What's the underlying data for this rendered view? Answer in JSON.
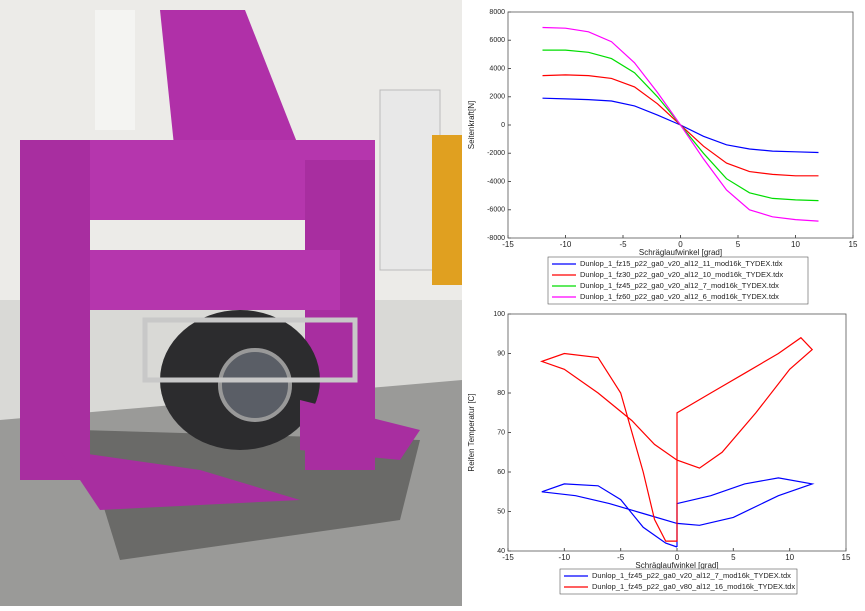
{
  "chart_data": [
    {
      "type": "line",
      "xlabel": "Schräglaufwinkel [grad]",
      "ylabel": "Seitenkraft[N]",
      "xlim": [
        -15,
        15
      ],
      "xticks": [
        -15,
        -10,
        -5,
        0,
        5,
        10,
        15
      ],
      "ylim": [
        -8000,
        8000
      ],
      "yticks": [
        -8000,
        -6000,
        -4000,
        -2000,
        0,
        2000,
        4000,
        6000,
        8000
      ],
      "series": [
        {
          "name": "Dunlop_1_fz15_p22_ga0_v20_al12_11_mod16k_TYDEX.tdx",
          "color": "#0000ff",
          "x": [
            -12,
            -10,
            -8,
            -6,
            -4,
            -2,
            0,
            2,
            4,
            6,
            8,
            10,
            12
          ],
          "values": [
            1900,
            1850,
            1800,
            1700,
            1350,
            700,
            0,
            -800,
            -1400,
            -1700,
            -1850,
            -1900,
            -1950
          ]
        },
        {
          "name": "Dunlop_1_fz30_p22_ga0_v20_al12_10_mod16k_TYDEX.tdx",
          "color": "#ff0000",
          "x": [
            -12,
            -10,
            -8,
            -6,
            -4,
            -2,
            0,
            2,
            4,
            6,
            8,
            10,
            12
          ],
          "values": [
            3500,
            3550,
            3500,
            3300,
            2700,
            1500,
            0,
            -1500,
            -2700,
            -3300,
            -3500,
            -3600,
            -3600
          ]
        },
        {
          "name": "Dunlop_1_fz45_p22_ga0_v20_al12_7_mod16k_TYDEX.tdx",
          "color": "#00dd00",
          "x": [
            -12,
            -10,
            -8,
            -6,
            -4,
            -2,
            0,
            2,
            4,
            6,
            8,
            10,
            12
          ],
          "values": [
            5300,
            5300,
            5150,
            4700,
            3700,
            2000,
            0,
            -2000,
            -3800,
            -4800,
            -5200,
            -5300,
            -5350
          ]
        },
        {
          "name": "Dunlop_1_fz60_p22_ga0_v20_al12_6_mod16k_TYDEX.tdx",
          "color": "#ff00ff",
          "x": [
            -12,
            -10,
            -8,
            -6,
            -4,
            -2,
            0,
            2,
            4,
            6,
            8,
            10,
            12
          ],
          "values": [
            6900,
            6850,
            6600,
            5900,
            4400,
            2300,
            0,
            -2400,
            -4600,
            -6000,
            -6500,
            -6700,
            -6800
          ]
        }
      ]
    },
    {
      "type": "line",
      "xlabel": "Schräglaufwinkel [grad]",
      "ylabel": "Reifen Temperatur [C]",
      "xlim": [
        -15,
        15
      ],
      "xticks": [
        -15,
        -10,
        -5,
        0,
        5,
        10,
        15
      ],
      "ylim": [
        40,
        100
      ],
      "yticks": [
        40,
        50,
        60,
        70,
        80,
        90,
        100
      ],
      "series": [
        {
          "name": "Dunlop_1_fz45_p22_ga0_v20_al12_7_mod16k_TYDEX.tdx",
          "color": "#0000ff",
          "x": [
            0,
            0,
            3,
            6,
            9,
            12,
            9,
            5,
            2,
            0,
            -3,
            -6,
            -9,
            -12,
            -10,
            -7,
            -5,
            -3,
            -1,
            0
          ],
          "values": [
            41,
            52,
            54,
            57,
            58.5,
            57,
            54,
            48.5,
            46.5,
            47,
            49.5,
            52,
            54,
            55,
            57,
            56.5,
            53,
            46,
            42,
            41
          ]
        },
        {
          "name": "Dunlop_1_fz45_p22_ga0_v80_al12_16_mod16k_TYDEX.tdx",
          "color": "#ff0000",
          "x": [
            0,
            0,
            3,
            6,
            9,
            11,
            12,
            10,
            7,
            4,
            2,
            0,
            -2,
            -4,
            -7,
            -10,
            -12,
            -10,
            -7,
            -5,
            -3,
            -2,
            -1,
            0,
            0
          ],
          "values": [
            69,
            75,
            80,
            85,
            90,
            94,
            91,
            86,
            75,
            65,
            61,
            63,
            67,
            73,
            80,
            86,
            88,
            90,
            89,
            80,
            60,
            48,
            42.5,
            42.5,
            69
          ]
        }
      ]
    }
  ]
}
